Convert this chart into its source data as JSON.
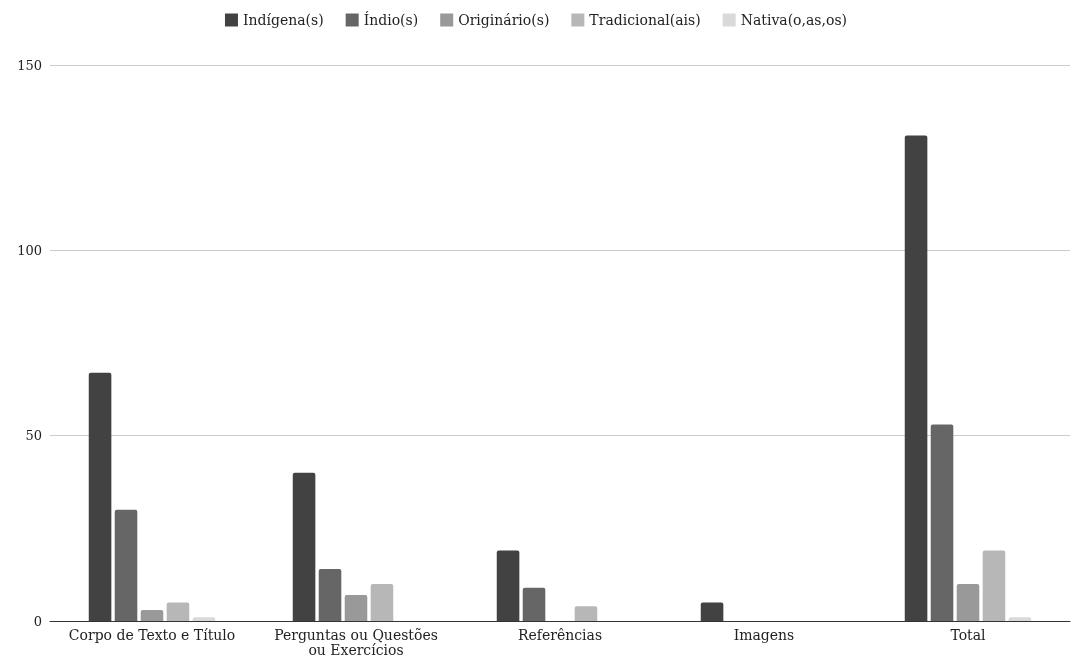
{
  "chart_data": {
    "type": "bar",
    "categories": [
      "Corpo de Texto e Título",
      "Perguntas ou Questões\nou Exercícios",
      "Referências",
      "Imagens",
      "Total"
    ],
    "series": [
      {
        "name": "Indígena(s)",
        "color": "#424242",
        "values": [
          67,
          40,
          19,
          5,
          131
        ]
      },
      {
        "name": "Índio(s)",
        "color": "#666666",
        "values": [
          30,
          14,
          9,
          0,
          53
        ]
      },
      {
        "name": "Originário(s)",
        "color": "#999999",
        "values": [
          3,
          7,
          0,
          0,
          10
        ]
      },
      {
        "name": "Tradicional(ais)",
        "color": "#b7b7b7",
        "values": [
          5,
          10,
          4,
          0,
          19
        ]
      },
      {
        "name": "Nativa(o,as,os)",
        "color": "#d9d9d9",
        "values": [
          1,
          0,
          0,
          0,
          1
        ]
      }
    ],
    "ylim": [
      0,
      150
    ],
    "yticks": [
      0,
      50,
      100,
      150
    ],
    "grid": "y",
    "legend": "top"
  }
}
